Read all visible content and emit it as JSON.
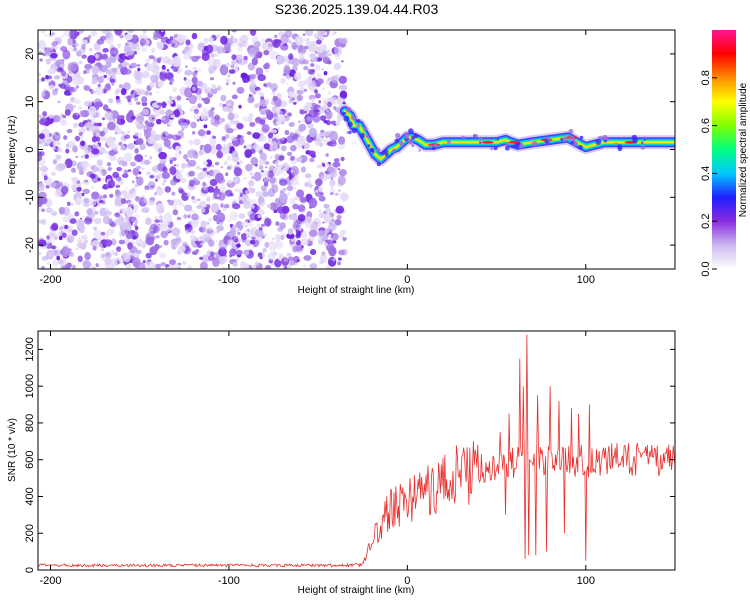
{
  "title": "S236.2025.139.04.44.R03",
  "chart_data": [
    {
      "type": "heatmap",
      "xlabel": "Height of straight line (km)",
      "ylabel": "Frequency (Hz)",
      "xlim": [
        -207,
        150
      ],
      "ylim": [
        -25,
        25
      ],
      "x_ticks": [
        -200,
        -100,
        0,
        100
      ],
      "y_ticks": [
        -20,
        -10,
        0,
        10,
        20
      ],
      "noise_region_x": [
        -207,
        -35
      ],
      "ridge_line": {
        "x": [
          -35,
          -32,
          -30,
          -27,
          -24,
          -21,
          -18,
          -15,
          -12,
          -9,
          -6,
          -3,
          0,
          3,
          6,
          10,
          15,
          20,
          30,
          40,
          50,
          55,
          58,
          62,
          70,
          80,
          90,
          95,
          100,
          110,
          120,
          130,
          140,
          150
        ],
        "y": [
          8,
          7,
          5,
          5,
          3,
          1,
          -1,
          -2,
          -1,
          0,
          0.5,
          1.5,
          2.5,
          2.5,
          2,
          1,
          1,
          1.5,
          1.5,
          1.5,
          1.5,
          2,
          1.5,
          1,
          1.5,
          2,
          2.5,
          1.5,
          0.5,
          1.5,
          1.5,
          1.5,
          1.5,
          1.5
        ]
      },
      "colorbar": {
        "label": "Normalized spectral amplitude",
        "range": [
          0,
          1
        ],
        "ticks": [
          "0.0",
          "0.2",
          "0.4",
          "0.6",
          "0.8"
        ],
        "colors": [
          "#ffffff",
          "#cbb8f0",
          "#8a2be2",
          "#1e1eff",
          "#00c8ff",
          "#00ff7f",
          "#7fff00",
          "#ffff00",
          "#ff8c00",
          "#ff0000",
          "#ff1493"
        ]
      }
    },
    {
      "type": "line",
      "xlabel": "Height of straight line (km)",
      "ylabel": "SNR (10 * v/v)",
      "xlim": [
        -207,
        150
      ],
      "ylim": [
        0,
        1300
      ],
      "x_ticks": [
        -200,
        -100,
        0,
        100
      ],
      "y_ticks": [
        0,
        200,
        400,
        600,
        800,
        1000,
        1200
      ],
      "color": "#e8302e",
      "envelope": {
        "x": [
          -207,
          -30,
          -25,
          -22,
          -20,
          -15,
          -10,
          -5,
          0,
          10,
          20,
          30,
          40,
          50,
          60,
          70,
          80,
          90,
          100,
          110,
          120,
          130,
          140,
          150
        ],
        "y": [
          25,
          25,
          30,
          100,
          150,
          250,
          320,
          360,
          380,
          430,
          470,
          520,
          550,
          570,
          580,
          590,
          590,
          600,
          590,
          600,
          600,
          600,
          600,
          600
        ]
      },
      "spikes": [
        {
          "x": 63,
          "y": 1150
        },
        {
          "x": 65,
          "y": 1000
        },
        {
          "x": 66,
          "y": 60
        },
        {
          "x": 67,
          "y": 1280
        },
        {
          "x": 68,
          "y": 80
        },
        {
          "x": 72,
          "y": 80
        },
        {
          "x": 73,
          "y": 950
        },
        {
          "x": 78,
          "y": 100
        },
        {
          "x": 80,
          "y": 1000
        },
        {
          "x": 85,
          "y": 920
        },
        {
          "x": 88,
          "y": 200
        },
        {
          "x": 92,
          "y": 880
        },
        {
          "x": 96,
          "y": 850
        },
        {
          "x": 100,
          "y": 50
        },
        {
          "x": 102,
          "y": 900
        },
        {
          "x": 57,
          "y": 850
        },
        {
          "x": 55,
          "y": 300
        },
        {
          "x": 52,
          "y": 750
        }
      ]
    }
  ]
}
